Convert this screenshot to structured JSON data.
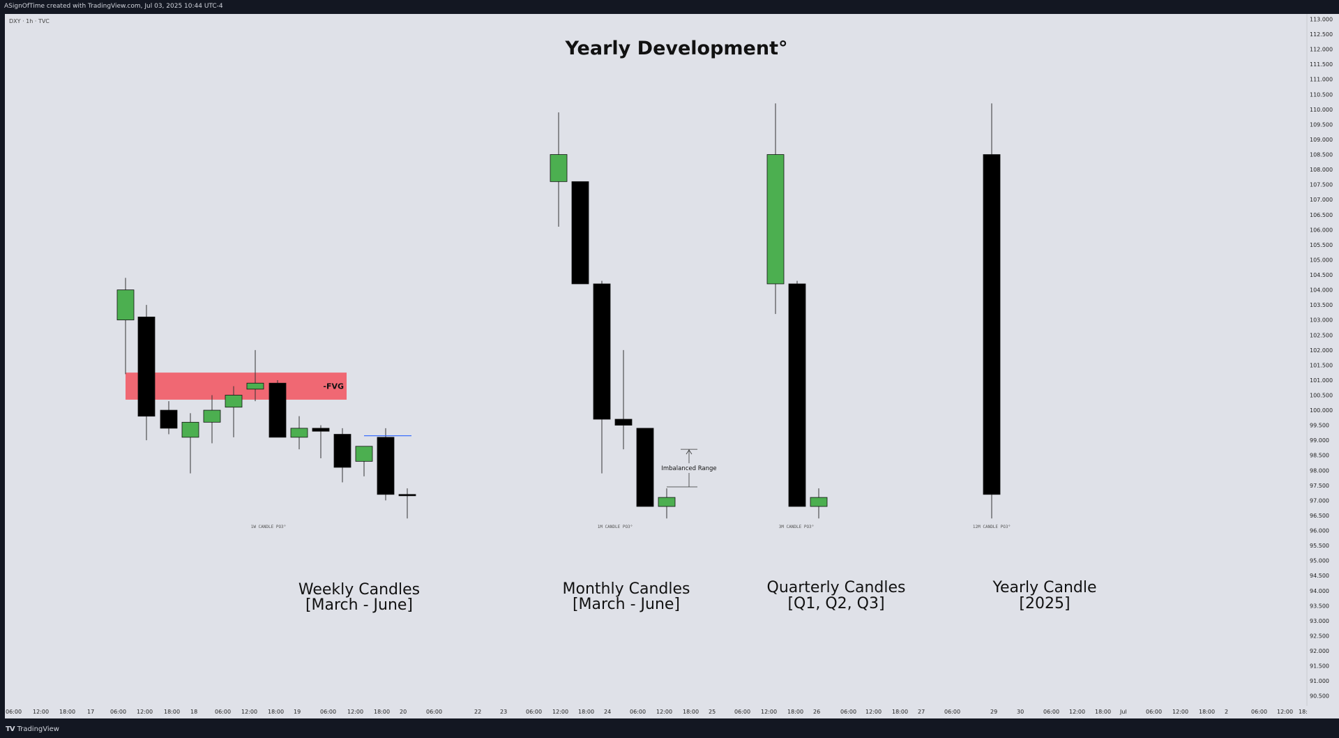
{
  "header": {
    "caption": "ASignOfTime created with TradingView.com, Jul 03, 2025 10:44 UTC-4",
    "symbol": "DXY · 1h · TVC"
  },
  "footer": {
    "logo_mark": "TV",
    "logo_text": "TradingView"
  },
  "colors": {
    "bullish": "#4caf50",
    "bearish": "#000000",
    "fvg": "#f0616d",
    "level_line": "#2962ff",
    "background": "#dfe1e8"
  },
  "chart_data": {
    "type": "candlestick",
    "title": "Yearly Development°",
    "y_axis": {
      "min": 90.5,
      "max": 113.0,
      "step": 0.5,
      "position": "right",
      "labels": [
        "113.000",
        "112.500",
        "112.000",
        "111.500",
        "111.000",
        "110.500",
        "110.000",
        "109.500",
        "109.000",
        "108.500",
        "108.000",
        "107.500",
        "107.000",
        "106.500",
        "106.000",
        "105.500",
        "105.000",
        "104.500",
        "104.000",
        "103.500",
        "103.000",
        "102.500",
        "102.000",
        "101.500",
        "101.000",
        "100.500",
        "100.000",
        "99.500",
        "99.000",
        "98.500",
        "98.000",
        "97.500",
        "97.000",
        "96.500",
        "96.000",
        "95.500",
        "95.000",
        "94.500",
        "94.000",
        "93.500",
        "93.000",
        "92.500",
        "92.000",
        "91.500",
        "91.000",
        "90.500"
      ]
    },
    "x_axis": {
      "labels": [
        "06:00",
        "12:00",
        "18:00",
        "17",
        "06:00",
        "12:00",
        "18:00",
        "18",
        "06:00",
        "12:00",
        "18:00",
        "19",
        "06:00",
        "12:00",
        "18:00",
        "20",
        "06:00",
        "22",
        "23",
        "06:00",
        "12:00",
        "18:00",
        "24",
        "06:00",
        "12:00",
        "18:00",
        "25",
        "06:00",
        "12:00",
        "18:00",
        "26",
        "06:00",
        "12:00",
        "18:00",
        "27",
        "06:00",
        "29",
        "30",
        "06:00",
        "12:00",
        "18:00",
        "Jul",
        "06:00",
        "12:00",
        "18:00",
        "2",
        "06:00",
        "12:00",
        "18:"
      ]
    },
    "groups": [
      {
        "name": "weekly",
        "label_line1": "Weekly Candles",
        "label_line2": "[March - June]",
        "tag": "1W CANDLE PO3°",
        "candles": [
          {
            "o": 103.0,
            "h": 104.4,
            "l": 101.2,
            "c": 104.0
          },
          {
            "o": 103.1,
            "h": 103.5,
            "l": 99.0,
            "c": 99.8
          },
          {
            "o": 100.0,
            "h": 100.3,
            "l": 99.2,
            "c": 99.4
          },
          {
            "o": 99.1,
            "h": 99.9,
            "l": 97.9,
            "c": 99.6
          },
          {
            "o": 99.6,
            "h": 100.5,
            "l": 98.9,
            "c": 100.0
          },
          {
            "o": 100.1,
            "h": 100.8,
            "l": 99.1,
            "c": 100.5
          },
          {
            "o": 100.7,
            "h": 102.0,
            "l": 100.3,
            "c": 100.9
          },
          {
            "o": 100.9,
            "h": 101.0,
            "l": 99.1,
            "c": 99.1
          },
          {
            "o": 99.1,
            "h": 99.8,
            "l": 98.7,
            "c": 99.4
          },
          {
            "o": 99.4,
            "h": 99.5,
            "l": 98.4,
            "c": 99.3
          },
          {
            "o": 99.2,
            "h": 99.4,
            "l": 97.6,
            "c": 98.1
          },
          {
            "o": 98.3,
            "h": 98.7,
            "l": 97.8,
            "c": 98.8
          },
          {
            "o": 99.1,
            "h": 99.4,
            "l": 97.0,
            "c": 97.2
          },
          {
            "o": 97.2,
            "h": 97.4,
            "l": 96.4,
            "c": 97.2
          }
        ],
        "fvg": {
          "label": "-FVG",
          "top": 101.25,
          "bottom": 100.35
        },
        "level": {
          "value": 99.15
        }
      },
      {
        "name": "monthly",
        "label_line1": "Monthly Candles",
        "label_line2": "[March - June]",
        "tag": "1M CANDLE PO3°",
        "candles": [
          {
            "o": 107.6,
            "h": 109.9,
            "l": 106.1,
            "c": 108.5
          },
          {
            "o": 107.6,
            "h": 107.6,
            "l": 104.2,
            "c": 104.2
          },
          {
            "o": 104.2,
            "h": 104.3,
            "l": 97.9,
            "c": 99.7
          },
          {
            "o": 99.7,
            "h": 102.0,
            "l": 98.7,
            "c": 99.5
          },
          {
            "o": 99.4,
            "h": 99.4,
            "l": 96.8,
            "c": 96.8
          },
          {
            "o": 96.8,
            "h": 97.4,
            "l": 96.4,
            "c": 97.1
          }
        ],
        "annotation": {
          "label": "Imbalanced Range",
          "top": 98.7,
          "bottom": 97.45
        }
      },
      {
        "name": "quarterly",
        "label_line1": "Quarterly Candles",
        "label_line2": "[Q1, Q2, Q3]",
        "tag": "3M CANDLE PO3°",
        "candles": [
          {
            "o": 104.2,
            "h": 110.2,
            "l": 103.2,
            "c": 108.5
          },
          {
            "o": 104.2,
            "h": 104.3,
            "l": 96.8,
            "c": 96.8
          },
          {
            "o": 96.8,
            "h": 97.4,
            "l": 96.4,
            "c": 97.1
          }
        ]
      },
      {
        "name": "yearly",
        "label_line1": "Yearly Candle",
        "label_line2": "[2025]",
        "tag": "12M CANDLE PO3°",
        "candles": [
          {
            "o": 108.5,
            "h": 110.2,
            "l": 96.4,
            "c": 97.2
          }
        ]
      }
    ]
  }
}
